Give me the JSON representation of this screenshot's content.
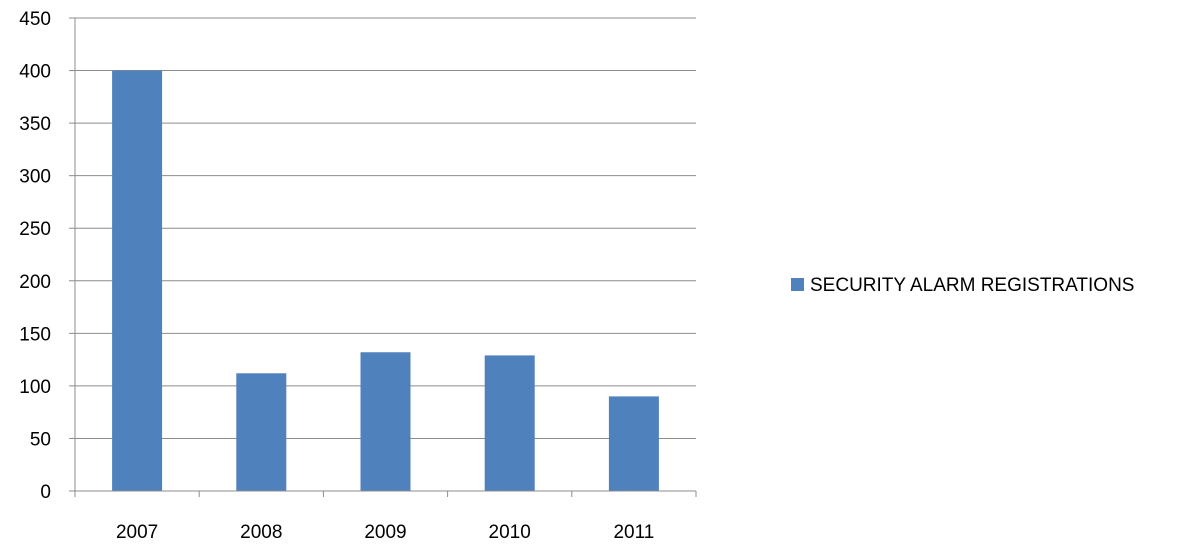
{
  "chart_data": {
    "type": "bar",
    "title": "",
    "xlabel": "",
    "ylabel": "",
    "categories": [
      "2007",
      "2008",
      "2009",
      "2010",
      "2011"
    ],
    "series": [
      {
        "name": "SECURITY ALARM REGISTRATIONS",
        "values": [
          400,
          112,
          132,
          129,
          90
        ],
        "color": "#4f81bd"
      }
    ],
    "ylim": [
      0,
      450
    ],
    "yticks": [
      0,
      50,
      100,
      150,
      200,
      250,
      300,
      350,
      400,
      450
    ],
    "grid": true,
    "legend_position": "right"
  }
}
